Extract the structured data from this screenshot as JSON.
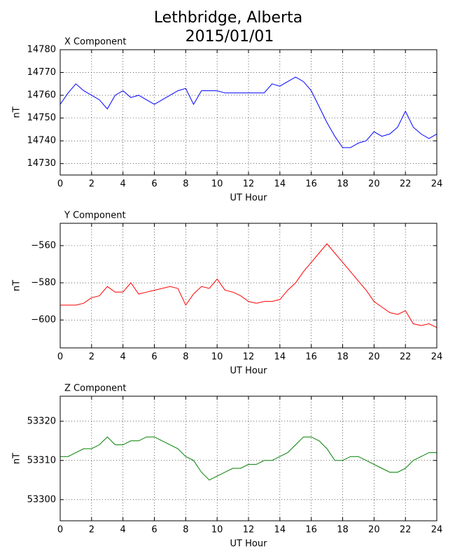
{
  "title": "Lethbridge, Alberta",
  "subtitle": "2015/01/01",
  "chart_data": [
    {
      "type": "line",
      "title": "X Component",
      "xlabel": "UT Hour",
      "ylabel": "nT",
      "x": [
        0,
        0.5,
        1,
        1.5,
        2,
        2.5,
        3,
        3.5,
        4,
        4.5,
        5,
        5.5,
        6,
        6.5,
        7,
        7.5,
        8,
        8.5,
        9,
        9.5,
        10,
        10.5,
        11,
        11.5,
        12,
        12.5,
        13,
        13.5,
        14,
        14.5,
        15,
        15.5,
        16,
        16.5,
        17,
        17.5,
        18,
        18.5,
        19,
        19.5,
        20,
        20.5,
        21,
        21.5,
        22,
        22.5,
        23,
        23.5,
        24
      ],
      "values": [
        14756,
        14761,
        14765,
        14762,
        14760,
        14758,
        14754,
        14760,
        14762,
        14759,
        14760,
        14758,
        14756,
        14758,
        14760,
        14762,
        14763,
        14756,
        14762,
        14762,
        14762,
        14761,
        14761,
        14761,
        14761,
        14761,
        14761,
        14765,
        14764,
        14766,
        14768,
        14766,
        14762,
        14755,
        14748,
        14742,
        14737,
        14737,
        14739,
        14740,
        14744,
        14742,
        14743,
        14746,
        14753,
        14746,
        14743,
        14741,
        14743
      ],
      "color": "#0000ff",
      "xlim": [
        0,
        24
      ],
      "xticks": [
        0,
        2,
        4,
        6,
        8,
        10,
        12,
        14,
        16,
        18,
        20,
        22,
        24
      ],
      "ylim": [
        14725,
        14780
      ],
      "yticks": [
        14730,
        14740,
        14750,
        14760,
        14770,
        14780
      ],
      "grid": true
    },
    {
      "type": "line",
      "title": "Y Component",
      "xlabel": "UT Hour",
      "ylabel": "nT",
      "x": [
        0,
        0.5,
        1,
        1.5,
        2,
        2.5,
        3,
        3.5,
        4,
        4.5,
        5,
        5.5,
        6,
        6.5,
        7,
        7.5,
        8,
        8.5,
        9,
        9.5,
        10,
        10.5,
        11,
        11.5,
        12,
        12.5,
        13,
        13.5,
        14,
        14.5,
        15,
        15.5,
        16,
        16.5,
        17,
        17.5,
        18,
        18.5,
        19,
        19.5,
        20,
        20.5,
        21,
        21.5,
        22,
        22.5,
        23,
        23.5,
        24
      ],
      "values": [
        -592,
        -592,
        -592,
        -591,
        -588,
        -587,
        -582,
        -585,
        -585,
        -580,
        -586,
        -585,
        -584,
        -583,
        -582,
        -583,
        -592,
        -586,
        -582,
        -583,
        -578,
        -584,
        -585,
        -587,
        -590,
        -591,
        -590,
        -590,
        -589,
        -584,
        -580,
        -574,
        -569,
        -564,
        -559,
        -564,
        -569,
        -574,
        -579,
        -584,
        -590,
        -593,
        -596,
        -597,
        -595,
        -602,
        -603,
        -602,
        -604
      ],
      "color": "#ff0000",
      "xlim": [
        0,
        24
      ],
      "xticks": [
        0,
        2,
        4,
        6,
        8,
        10,
        12,
        14,
        16,
        18,
        20,
        22,
        24
      ],
      "ylim": [
        -615,
        -548
      ],
      "yticks": [
        {
          "value": -600,
          "label": "−600"
        },
        {
          "value": -580,
          "label": "−580"
        },
        {
          "value": -560,
          "label": "−560"
        }
      ],
      "grid": true
    },
    {
      "type": "line",
      "title": "Z Component",
      "xlabel": "UT Hour",
      "ylabel": "nT",
      "x": [
        0,
        0.5,
        1,
        1.5,
        2,
        2.5,
        3,
        3.5,
        4,
        4.5,
        5,
        5.5,
        6,
        6.5,
        7,
        7.5,
        8,
        8.5,
        9,
        9.5,
        10,
        10.5,
        11,
        11.5,
        12,
        12.5,
        13,
        13.5,
        14,
        14.5,
        15,
        15.5,
        16,
        16.5,
        17,
        17.5,
        18,
        18.5,
        19,
        19.5,
        20,
        20.5,
        21,
        21.5,
        22,
        22.5,
        23,
        23.5,
        24
      ],
      "values": [
        53311,
        53311,
        53312,
        53313,
        53313,
        53314,
        53316,
        53314,
        53314,
        53315,
        53315,
        53316,
        53316,
        53315,
        53314,
        53313,
        53311,
        53310,
        53307,
        53305,
        53306,
        53307,
        53308,
        53308,
        53309,
        53309,
        53310,
        53310,
        53311,
        53312,
        53314,
        53316,
        53316,
        53315,
        53313,
        53310,
        53310,
        53311,
        53311,
        53310,
        53309,
        53308,
        53307,
        53307,
        53308,
        53310,
        53311,
        53312,
        53312
      ],
      "color": "#008000",
      "xlim": [
        0,
        24
      ],
      "xticks": [
        0,
        2,
        4,
        6,
        8,
        10,
        12,
        14,
        16,
        18,
        20,
        22,
        24
      ],
      "ylim": [
        53294.6,
        53326.4
      ],
      "yticks": [
        53300,
        53310,
        53320
      ],
      "grid": true
    }
  ]
}
